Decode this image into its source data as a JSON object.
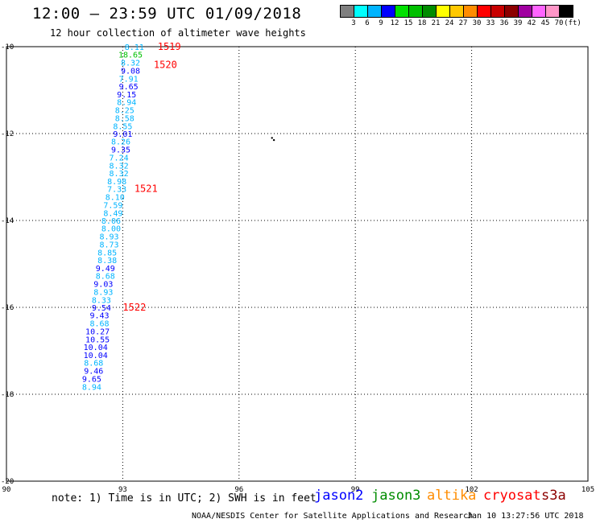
{
  "header": {
    "title": "12:00 – 23:59 UTC 01/09/2018",
    "subtitle": "12 hour collection of altimeter wave heights"
  },
  "color_scale": {
    "colors": [
      "#7f7f7f",
      "#00ffff",
      "#00b4ff",
      "#0000ff",
      "#00e000",
      "#00c000",
      "#008c00",
      "#ffff00",
      "#ffc800",
      "#ff8c00",
      "#ff0000",
      "#c80000",
      "#8c0000",
      "#a000a0",
      "#ff64ff",
      "#ff96c8",
      "#000000"
    ],
    "labels": [
      "3",
      "6",
      "9",
      "12",
      "15",
      "18",
      "21",
      "24",
      "27",
      "30",
      "33",
      "36",
      "39",
      "42",
      "45",
      "70",
      "(ft)"
    ]
  },
  "map": {
    "x_ticks": [
      "90",
      "93",
      "96",
      "99",
      "102",
      "105"
    ],
    "y_ticks": [
      "-10",
      "-12",
      "-14",
      "-16",
      "-18",
      "-20"
    ],
    "x_range": [
      90,
      105
    ],
    "y_range": [
      -20,
      -10
    ]
  },
  "observations": [
    {
      "lon": 93.3,
      "lat": -10.0,
      "v": "8.11",
      "c": "#00b4ff"
    },
    {
      "lon": 93.2,
      "lat": -10.18,
      "v": "18.65",
      "c": "#00c000"
    },
    {
      "lon": 93.2,
      "lat": -10.36,
      "v": "8.32",
      "c": "#00b4ff"
    },
    {
      "lon": 93.2,
      "lat": -10.55,
      "v": "9.08",
      "c": "#0000ff"
    },
    {
      "lon": 93.15,
      "lat": -10.73,
      "v": "7.91",
      "c": "#00b4ff"
    },
    {
      "lon": 93.15,
      "lat": -10.91,
      "v": "9.65",
      "c": "#0000ff"
    },
    {
      "lon": 93.1,
      "lat": -11.09,
      "v": "9.15",
      "c": "#0000ff"
    },
    {
      "lon": 93.1,
      "lat": -11.27,
      "v": "8.94",
      "c": "#00b4ff"
    },
    {
      "lon": 93.05,
      "lat": -11.45,
      "v": "8.25",
      "c": "#00b4ff"
    },
    {
      "lon": 93.05,
      "lat": -11.64,
      "v": "8.58",
      "c": "#00b4ff"
    },
    {
      "lon": 93.0,
      "lat": -11.82,
      "v": "8.55",
      "c": "#00b4ff"
    },
    {
      "lon": 93.0,
      "lat": -12.0,
      "v": "9.01",
      "c": "#0000ff"
    },
    {
      "lon": 92.95,
      "lat": -12.18,
      "v": "8.26",
      "c": "#00b4ff"
    },
    {
      "lon": 92.95,
      "lat": -12.36,
      "v": "9.35",
      "c": "#0000ff"
    },
    {
      "lon": 92.9,
      "lat": -12.55,
      "v": "7.24",
      "c": "#00b4ff"
    },
    {
      "lon": 92.9,
      "lat": -12.73,
      "v": "8.32",
      "c": "#00b4ff"
    },
    {
      "lon": 92.9,
      "lat": -12.91,
      "v": "8.32",
      "c": "#00b4ff"
    },
    {
      "lon": 92.85,
      "lat": -13.09,
      "v": "8.98",
      "c": "#00b4ff"
    },
    {
      "lon": 92.85,
      "lat": -13.27,
      "v": "7.33",
      "c": "#00b4ff"
    },
    {
      "lon": 92.8,
      "lat": -13.45,
      "v": "8.10",
      "c": "#00b4ff"
    },
    {
      "lon": 92.75,
      "lat": -13.64,
      "v": "7.59",
      "c": "#00b4ff"
    },
    {
      "lon": 92.75,
      "lat": -13.82,
      "v": "8.49",
      "c": "#00b4ff"
    },
    {
      "lon": 92.7,
      "lat": -14.0,
      "v": "8.06",
      "c": "#00b4ff"
    },
    {
      "lon": 92.7,
      "lat": -14.18,
      "v": "8.00",
      "c": "#00b4ff"
    },
    {
      "lon": 92.65,
      "lat": -14.36,
      "v": "8.93",
      "c": "#00b4ff"
    },
    {
      "lon": 92.65,
      "lat": -14.55,
      "v": "8.73",
      "c": "#00b4ff"
    },
    {
      "lon": 92.6,
      "lat": -14.73,
      "v": "8.85",
      "c": "#00b4ff"
    },
    {
      "lon": 92.6,
      "lat": -14.91,
      "v": "8.38",
      "c": "#00b4ff"
    },
    {
      "lon": 92.55,
      "lat": -15.09,
      "v": "9.49",
      "c": "#0000ff"
    },
    {
      "lon": 92.55,
      "lat": -15.27,
      "v": "8.68",
      "c": "#00b4ff"
    },
    {
      "lon": 92.5,
      "lat": -15.45,
      "v": "9.03",
      "c": "#0000ff"
    },
    {
      "lon": 92.5,
      "lat": -15.64,
      "v": "8.93",
      "c": "#00b4ff"
    },
    {
      "lon": 92.45,
      "lat": -15.82,
      "v": "8.33",
      "c": "#00b4ff"
    },
    {
      "lon": 92.45,
      "lat": -16.0,
      "v": "9.54",
      "c": "#0000ff"
    },
    {
      "lon": 92.4,
      "lat": -16.18,
      "v": "9.43",
      "c": "#0000ff"
    },
    {
      "lon": 92.4,
      "lat": -16.36,
      "v": "8.68",
      "c": "#00b4ff"
    },
    {
      "lon": 92.35,
      "lat": -16.55,
      "v": "10.27",
      "c": "#0000ff"
    },
    {
      "lon": 92.35,
      "lat": -16.73,
      "v": "10.55",
      "c": "#0000ff"
    },
    {
      "lon": 92.3,
      "lat": -16.91,
      "v": "10.04",
      "c": "#0000ff"
    },
    {
      "lon": 92.3,
      "lat": -17.09,
      "v": "10.04",
      "c": "#0000ff"
    },
    {
      "lon": 92.25,
      "lat": -17.27,
      "v": "8.68",
      "c": "#00b4ff"
    },
    {
      "lon": 92.25,
      "lat": -17.45,
      "v": "9.46",
      "c": "#0000ff"
    },
    {
      "lon": 92.2,
      "lat": -17.64,
      "v": "9.65",
      "c": "#0000ff"
    },
    {
      "lon": 92.2,
      "lat": -17.82,
      "v": "8.94",
      "c": "#00b4ff"
    }
  ],
  "pass_labels": [
    {
      "lon": 93.9,
      "lat": -10.0,
      "t": "1519"
    },
    {
      "lon": 93.8,
      "lat": -10.42,
      "t": "1520"
    },
    {
      "lon": 93.3,
      "lat": -13.27,
      "t": "1521"
    },
    {
      "lon": 93.0,
      "lat": -16.0,
      "t": "1522"
    }
  ],
  "island_points": [
    {
      "lon": 96.85,
      "lat": -12.1
    },
    {
      "lon": 96.9,
      "lat": -12.15
    }
  ],
  "footer": {
    "note": "note: 1) Time is in UTC; 2) SWH is in feet",
    "satellites": [
      {
        "name": "jason2",
        "color": "#0000ff"
      },
      {
        "name": "jason3",
        "color": "#008c00"
      },
      {
        "name": "altika",
        "color": "#ff8c00"
      },
      {
        "name": "cryosat",
        "color": "#ff0000"
      },
      {
        "name": "s3a",
        "color": "#8c0000"
      }
    ],
    "credit": "NOAA/NESDIS Center for Satellite Applications and Research",
    "timestamp": "Jan 10 13:27:56 UTC 2018"
  }
}
